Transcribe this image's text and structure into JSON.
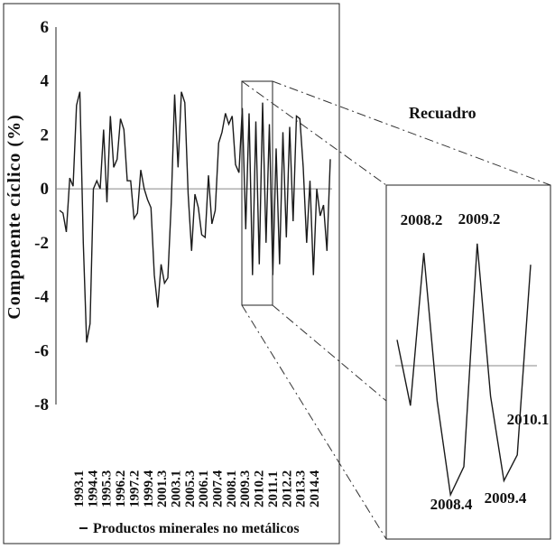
{
  "chart_data": {
    "type": "line",
    "ylabel": "Componente cíclico (%)",
    "ylim": [
      -8,
      6
    ],
    "yticks": [
      6,
      4,
      2,
      0,
      -2,
      -4,
      -6,
      -8
    ],
    "x_tick_labels": [
      "1993.1",
      "1994.4",
      "1995.3",
      "1996.2",
      "1997.2",
      "1999.4",
      "2001.3",
      "2003.1",
      "2005.3",
      "2006.1",
      "2007.4",
      "2008.1",
      "2009.3",
      "2010.2",
      "2011.1",
      "2012.2",
      "2013.3",
      "2014.4"
    ],
    "series": [
      {
        "name": "Productos minerales no metálicos",
        "color": "#1a1a1a",
        "values": [
          -0.8,
          -0.9,
          -1.6,
          0.4,
          0.1,
          3.1,
          3.6,
          -2.0,
          -5.7,
          -5.0,
          0.0,
          0.3,
          0.0,
          2.2,
          -0.5,
          2.7,
          0.8,
          1.1,
          2.6,
          2.2,
          0.3,
          0.3,
          -1.1,
          -0.9,
          0.7,
          0.0,
          -0.4,
          -0.7,
          -3.2,
          -4.4,
          -2.8,
          -3.5,
          -3.3,
          -0.5,
          3.5,
          0.8,
          3.6,
          3.2,
          -0.2,
          -2.3,
          -0.2,
          -0.7,
          -1.7,
          -1.8,
          0.5,
          -1.3,
          -0.8,
          1.7,
          2.1,
          2.8,
          2.4,
          2.7,
          0.9,
          0.6,
          3.0,
          -1.5,
          2.8,
          -3.2,
          2.5,
          -2.8,
          3.2,
          -2.0,
          2.4,
          -3.2,
          1.5,
          -2.8,
          2.1,
          -1.8,
          2.3,
          -1.2,
          2.7,
          2.6,
          0.8,
          -2.0,
          0.3,
          -3.2,
          0.0,
          -1.0,
          -0.6,
          -2.3,
          1.1
        ]
      }
    ],
    "inset": {
      "title": "Recuadro",
      "values": [
        -1.4,
        -4.2,
        2.3,
        -4.0,
        -8.0,
        -6.8,
        2.7,
        -3.8,
        -7.4,
        -6.3,
        1.8
      ],
      "labels": [
        "2008.2",
        "2009.2",
        "2008.4",
        "2009.4",
        "2010.1"
      ]
    }
  }
}
